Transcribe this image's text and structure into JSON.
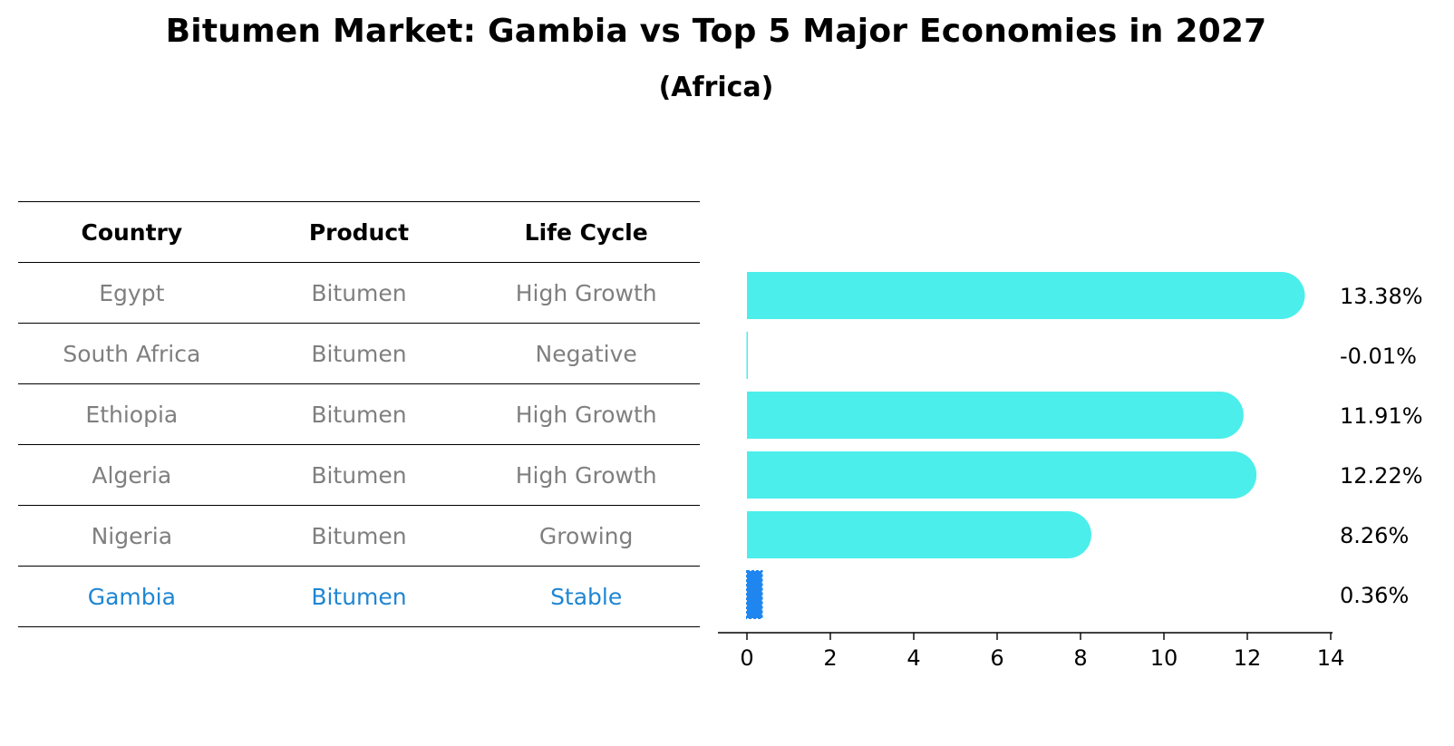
{
  "header": {
    "title": "Bitumen Market: Gambia vs Top 5 Major Economies in 2027",
    "subtitle": "(Africa)"
  },
  "table": {
    "columns": [
      "Country",
      "Product",
      "Life Cycle"
    ],
    "rows": [
      {
        "country": "Egypt",
        "product": "Bitumen",
        "life_cycle": "High Growth",
        "highlight": false
      },
      {
        "country": "South Africa",
        "product": "Bitumen",
        "life_cycle": "Negative",
        "highlight": false
      },
      {
        "country": "Ethiopia",
        "product": "Bitumen",
        "life_cycle": "High Growth",
        "highlight": false
      },
      {
        "country": "Algeria",
        "product": "Bitumen",
        "life_cycle": "High Growth",
        "highlight": false
      },
      {
        "country": "Nigeria",
        "product": "Bitumen",
        "life_cycle": "Growing",
        "highlight": false
      },
      {
        "country": "Gambia",
        "product": "Bitumen",
        "life_cycle": "Stable",
        "highlight": true
      }
    ]
  },
  "colors": {
    "bar": "#4beeeb",
    "highlight_bar": "#1f86f0",
    "highlight_text": "#1f86d3",
    "muted_text": "#7f7f7f"
  },
  "chart_data": {
    "type": "bar",
    "orientation": "horizontal",
    "categories": [
      "Egypt",
      "South Africa",
      "Ethiopia",
      "Algeria",
      "Nigeria",
      "Gambia"
    ],
    "values": [
      13.38,
      -0.01,
      11.91,
      12.22,
      8.26,
      0.36
    ],
    "value_labels": [
      "13.38%",
      "-0.01%",
      "11.91%",
      "12.22%",
      "8.26%",
      "0.36%"
    ],
    "highlight_index": 5,
    "xlim": [
      0,
      14
    ],
    "xticks": [
      0,
      2,
      4,
      6,
      8,
      10,
      12,
      14
    ],
    "grid": false,
    "xlabel": "",
    "ylabel": ""
  }
}
